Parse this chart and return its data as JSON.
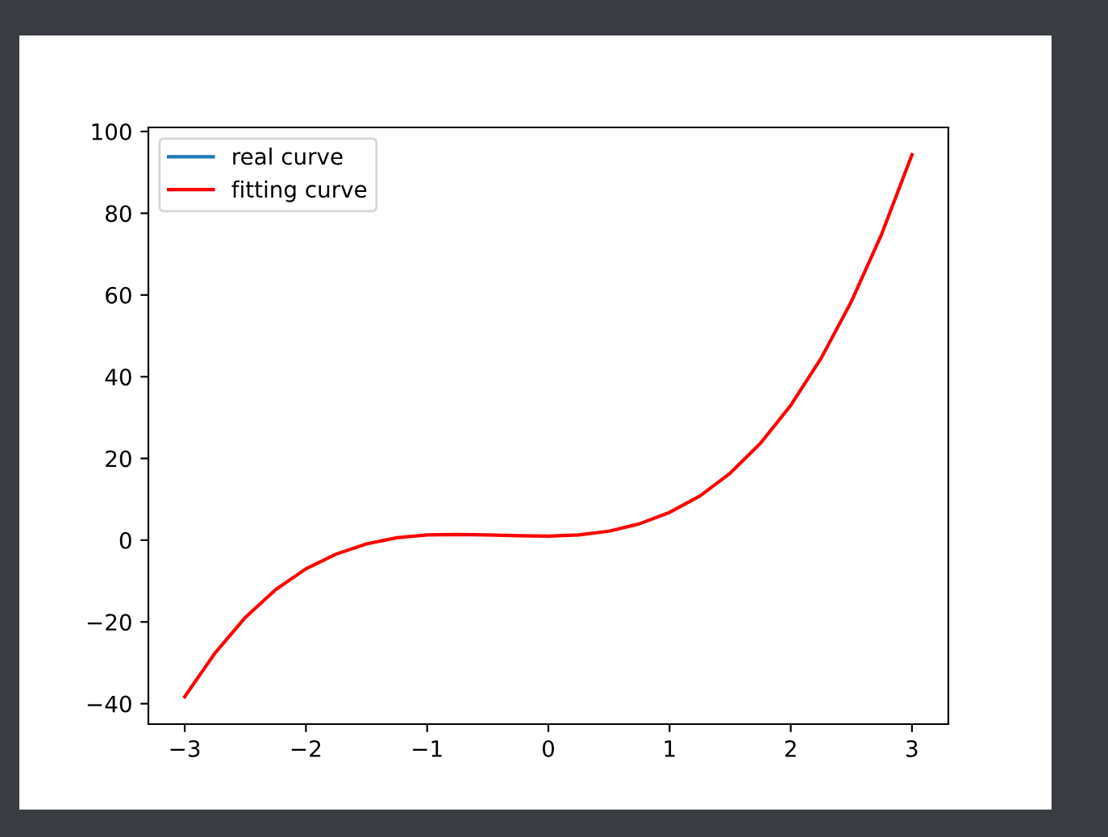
{
  "chart_data": {
    "type": "line",
    "x": [
      -3,
      -2.75,
      -2.5,
      -2.25,
      -2,
      -1.75,
      -1.5,
      -1.25,
      -1,
      -0.75,
      -0.5,
      -0.25,
      0,
      0.25,
      0.5,
      0.75,
      1,
      1.25,
      1.5,
      1.75,
      2,
      2.25,
      2.5,
      2.75,
      3
    ],
    "series": [
      {
        "name": "real curve",
        "color": "#1f77b4",
        "values": [
          null,
          null,
          null,
          null,
          null,
          null,
          null,
          null,
          null,
          null,
          null,
          null,
          null,
          null,
          null,
          null,
          null,
          null,
          null,
          null,
          null,
          null,
          null,
          null,
          null
        ]
      },
      {
        "name": "fitting curve",
        "color": "#ff0000",
        "values": [
          -38.3,
          -27.6,
          -18.9,
          -12.1,
          -7.0,
          -3.4,
          -0.9,
          0.6,
          1.3,
          1.4,
          1.3,
          1.1,
          1.0,
          1.3,
          2.2,
          4.0,
          6.8,
          10.8,
          16.4,
          23.7,
          33.0,
          44.5,
          58.4,
          74.9,
          94.3
        ]
      }
    ],
    "xlim": [
      -3.3,
      3.3
    ],
    "xticks": [
      -3,
      -2,
      -1,
      0,
      1,
      2,
      3
    ],
    "ylim": [
      -45,
      101
    ],
    "yticks": [
      -40,
      -20,
      0,
      20,
      40,
      60,
      80,
      100
    ],
    "legend": "top left",
    "grid": false
  }
}
